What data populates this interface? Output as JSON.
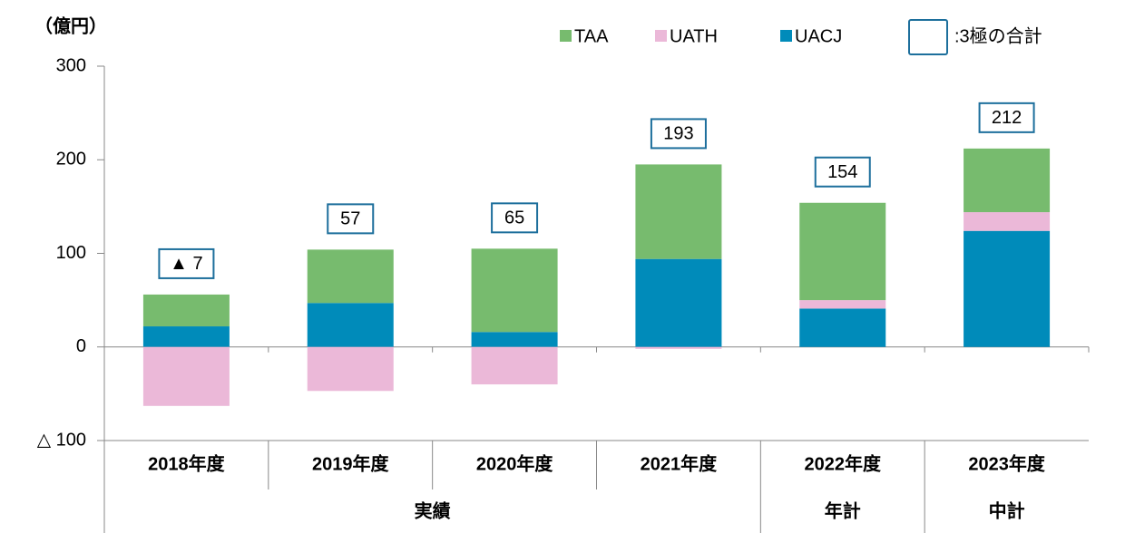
{
  "chart_data": {
    "type": "bar",
    "stacked": true,
    "unit_label": "（億円）",
    "categories": [
      "2018年度",
      "2019年度",
      "2020年度",
      "2021年度",
      "2022年度",
      "2023年度"
    ],
    "groups": [
      {
        "label": "実績",
        "count": 4
      },
      {
        "label": "年計",
        "count": 1
      },
      {
        "label": "中計",
        "count": 1
      }
    ],
    "series": [
      {
        "name": "TAA",
        "color": "#77bb6e",
        "values": [
          34,
          57,
          89,
          101,
          104,
          68
        ]
      },
      {
        "name": "UATH",
        "color": "#ebb8d8",
        "values": [
          -63,
          -47,
          -40,
          -2,
          9,
          20
        ]
      },
      {
        "name": "UACJ",
        "color": "#008bba",
        "values": [
          22,
          47,
          16,
          94,
          41,
          124
        ]
      }
    ],
    "totals": {
      "name": ":3極の合計",
      "color": "#1d6f9c",
      "values": [
        -7,
        57,
        65,
        193,
        154,
        212
      ],
      "value_labels": [
        "▲ 7",
        "57",
        "65",
        "193",
        "154",
        "212"
      ]
    },
    "ylim": [
      -100,
      300
    ],
    "yticks": [
      {
        "value": -100,
        "label": "△ 100"
      },
      0,
      100,
      200,
      300
    ]
  }
}
